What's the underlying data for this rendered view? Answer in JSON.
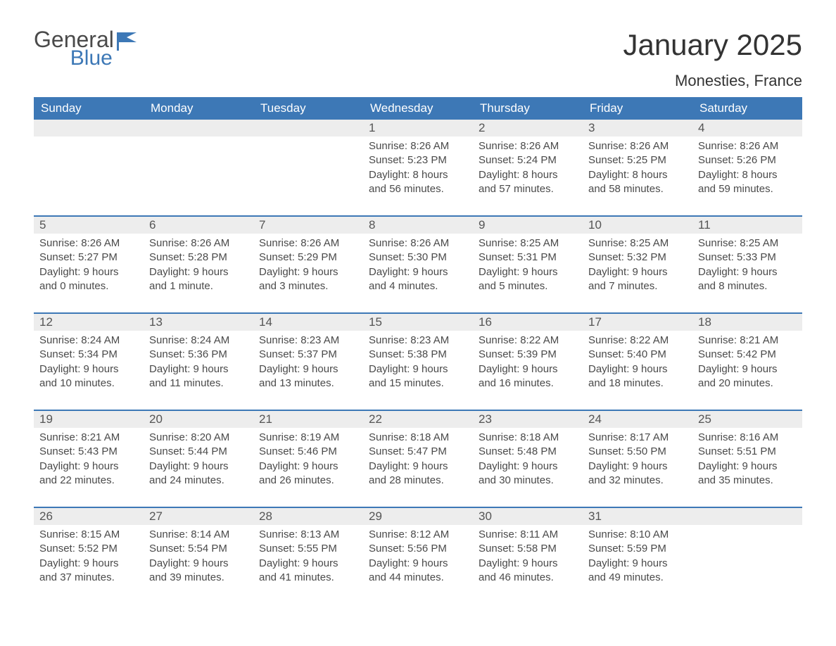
{
  "logo": {
    "general": "General",
    "blue": "Blue"
  },
  "title": "January 2025",
  "location": "Monesties, France",
  "colors": {
    "header_bg": "#3d78b6",
    "header_text": "#ffffff",
    "daybar_bg": "#ededed",
    "border": "#3d78b6",
    "body_text": "#4a4a4a",
    "title_text": "#333333"
  },
  "weekdays": [
    "Sunday",
    "Monday",
    "Tuesday",
    "Wednesday",
    "Thursday",
    "Friday",
    "Saturday"
  ],
  "weeks": [
    [
      {
        "n": "",
        "sunrise": "",
        "sunset": "",
        "daylight1": "",
        "daylight2": ""
      },
      {
        "n": "",
        "sunrise": "",
        "sunset": "",
        "daylight1": "",
        "daylight2": ""
      },
      {
        "n": "",
        "sunrise": "",
        "sunset": "",
        "daylight1": "",
        "daylight2": ""
      },
      {
        "n": "1",
        "sunrise": "Sunrise: 8:26 AM",
        "sunset": "Sunset: 5:23 PM",
        "daylight1": "Daylight: 8 hours",
        "daylight2": "and 56 minutes."
      },
      {
        "n": "2",
        "sunrise": "Sunrise: 8:26 AM",
        "sunset": "Sunset: 5:24 PM",
        "daylight1": "Daylight: 8 hours",
        "daylight2": "and 57 minutes."
      },
      {
        "n": "3",
        "sunrise": "Sunrise: 8:26 AM",
        "sunset": "Sunset: 5:25 PM",
        "daylight1": "Daylight: 8 hours",
        "daylight2": "and 58 minutes."
      },
      {
        "n": "4",
        "sunrise": "Sunrise: 8:26 AM",
        "sunset": "Sunset: 5:26 PM",
        "daylight1": "Daylight: 8 hours",
        "daylight2": "and 59 minutes."
      }
    ],
    [
      {
        "n": "5",
        "sunrise": "Sunrise: 8:26 AM",
        "sunset": "Sunset: 5:27 PM",
        "daylight1": "Daylight: 9 hours",
        "daylight2": "and 0 minutes."
      },
      {
        "n": "6",
        "sunrise": "Sunrise: 8:26 AM",
        "sunset": "Sunset: 5:28 PM",
        "daylight1": "Daylight: 9 hours",
        "daylight2": "and 1 minute."
      },
      {
        "n": "7",
        "sunrise": "Sunrise: 8:26 AM",
        "sunset": "Sunset: 5:29 PM",
        "daylight1": "Daylight: 9 hours",
        "daylight2": "and 3 minutes."
      },
      {
        "n": "8",
        "sunrise": "Sunrise: 8:26 AM",
        "sunset": "Sunset: 5:30 PM",
        "daylight1": "Daylight: 9 hours",
        "daylight2": "and 4 minutes."
      },
      {
        "n": "9",
        "sunrise": "Sunrise: 8:25 AM",
        "sunset": "Sunset: 5:31 PM",
        "daylight1": "Daylight: 9 hours",
        "daylight2": "and 5 minutes."
      },
      {
        "n": "10",
        "sunrise": "Sunrise: 8:25 AM",
        "sunset": "Sunset: 5:32 PM",
        "daylight1": "Daylight: 9 hours",
        "daylight2": "and 7 minutes."
      },
      {
        "n": "11",
        "sunrise": "Sunrise: 8:25 AM",
        "sunset": "Sunset: 5:33 PM",
        "daylight1": "Daylight: 9 hours",
        "daylight2": "and 8 minutes."
      }
    ],
    [
      {
        "n": "12",
        "sunrise": "Sunrise: 8:24 AM",
        "sunset": "Sunset: 5:34 PM",
        "daylight1": "Daylight: 9 hours",
        "daylight2": "and 10 minutes."
      },
      {
        "n": "13",
        "sunrise": "Sunrise: 8:24 AM",
        "sunset": "Sunset: 5:36 PM",
        "daylight1": "Daylight: 9 hours",
        "daylight2": "and 11 minutes."
      },
      {
        "n": "14",
        "sunrise": "Sunrise: 8:23 AM",
        "sunset": "Sunset: 5:37 PM",
        "daylight1": "Daylight: 9 hours",
        "daylight2": "and 13 minutes."
      },
      {
        "n": "15",
        "sunrise": "Sunrise: 8:23 AM",
        "sunset": "Sunset: 5:38 PM",
        "daylight1": "Daylight: 9 hours",
        "daylight2": "and 15 minutes."
      },
      {
        "n": "16",
        "sunrise": "Sunrise: 8:22 AM",
        "sunset": "Sunset: 5:39 PM",
        "daylight1": "Daylight: 9 hours",
        "daylight2": "and 16 minutes."
      },
      {
        "n": "17",
        "sunrise": "Sunrise: 8:22 AM",
        "sunset": "Sunset: 5:40 PM",
        "daylight1": "Daylight: 9 hours",
        "daylight2": "and 18 minutes."
      },
      {
        "n": "18",
        "sunrise": "Sunrise: 8:21 AM",
        "sunset": "Sunset: 5:42 PM",
        "daylight1": "Daylight: 9 hours",
        "daylight2": "and 20 minutes."
      }
    ],
    [
      {
        "n": "19",
        "sunrise": "Sunrise: 8:21 AM",
        "sunset": "Sunset: 5:43 PM",
        "daylight1": "Daylight: 9 hours",
        "daylight2": "and 22 minutes."
      },
      {
        "n": "20",
        "sunrise": "Sunrise: 8:20 AM",
        "sunset": "Sunset: 5:44 PM",
        "daylight1": "Daylight: 9 hours",
        "daylight2": "and 24 minutes."
      },
      {
        "n": "21",
        "sunrise": "Sunrise: 8:19 AM",
        "sunset": "Sunset: 5:46 PM",
        "daylight1": "Daylight: 9 hours",
        "daylight2": "and 26 minutes."
      },
      {
        "n": "22",
        "sunrise": "Sunrise: 8:18 AM",
        "sunset": "Sunset: 5:47 PM",
        "daylight1": "Daylight: 9 hours",
        "daylight2": "and 28 minutes."
      },
      {
        "n": "23",
        "sunrise": "Sunrise: 8:18 AM",
        "sunset": "Sunset: 5:48 PM",
        "daylight1": "Daylight: 9 hours",
        "daylight2": "and 30 minutes."
      },
      {
        "n": "24",
        "sunrise": "Sunrise: 8:17 AM",
        "sunset": "Sunset: 5:50 PM",
        "daylight1": "Daylight: 9 hours",
        "daylight2": "and 32 minutes."
      },
      {
        "n": "25",
        "sunrise": "Sunrise: 8:16 AM",
        "sunset": "Sunset: 5:51 PM",
        "daylight1": "Daylight: 9 hours",
        "daylight2": "and 35 minutes."
      }
    ],
    [
      {
        "n": "26",
        "sunrise": "Sunrise: 8:15 AM",
        "sunset": "Sunset: 5:52 PM",
        "daylight1": "Daylight: 9 hours",
        "daylight2": "and 37 minutes."
      },
      {
        "n": "27",
        "sunrise": "Sunrise: 8:14 AM",
        "sunset": "Sunset: 5:54 PM",
        "daylight1": "Daylight: 9 hours",
        "daylight2": "and 39 minutes."
      },
      {
        "n": "28",
        "sunrise": "Sunrise: 8:13 AM",
        "sunset": "Sunset: 5:55 PM",
        "daylight1": "Daylight: 9 hours",
        "daylight2": "and 41 minutes."
      },
      {
        "n": "29",
        "sunrise": "Sunrise: 8:12 AM",
        "sunset": "Sunset: 5:56 PM",
        "daylight1": "Daylight: 9 hours",
        "daylight2": "and 44 minutes."
      },
      {
        "n": "30",
        "sunrise": "Sunrise: 8:11 AM",
        "sunset": "Sunset: 5:58 PM",
        "daylight1": "Daylight: 9 hours",
        "daylight2": "and 46 minutes."
      },
      {
        "n": "31",
        "sunrise": "Sunrise: 8:10 AM",
        "sunset": "Sunset: 5:59 PM",
        "daylight1": "Daylight: 9 hours",
        "daylight2": "and 49 minutes."
      },
      {
        "n": "",
        "sunrise": "",
        "sunset": "",
        "daylight1": "",
        "daylight2": ""
      }
    ]
  ]
}
